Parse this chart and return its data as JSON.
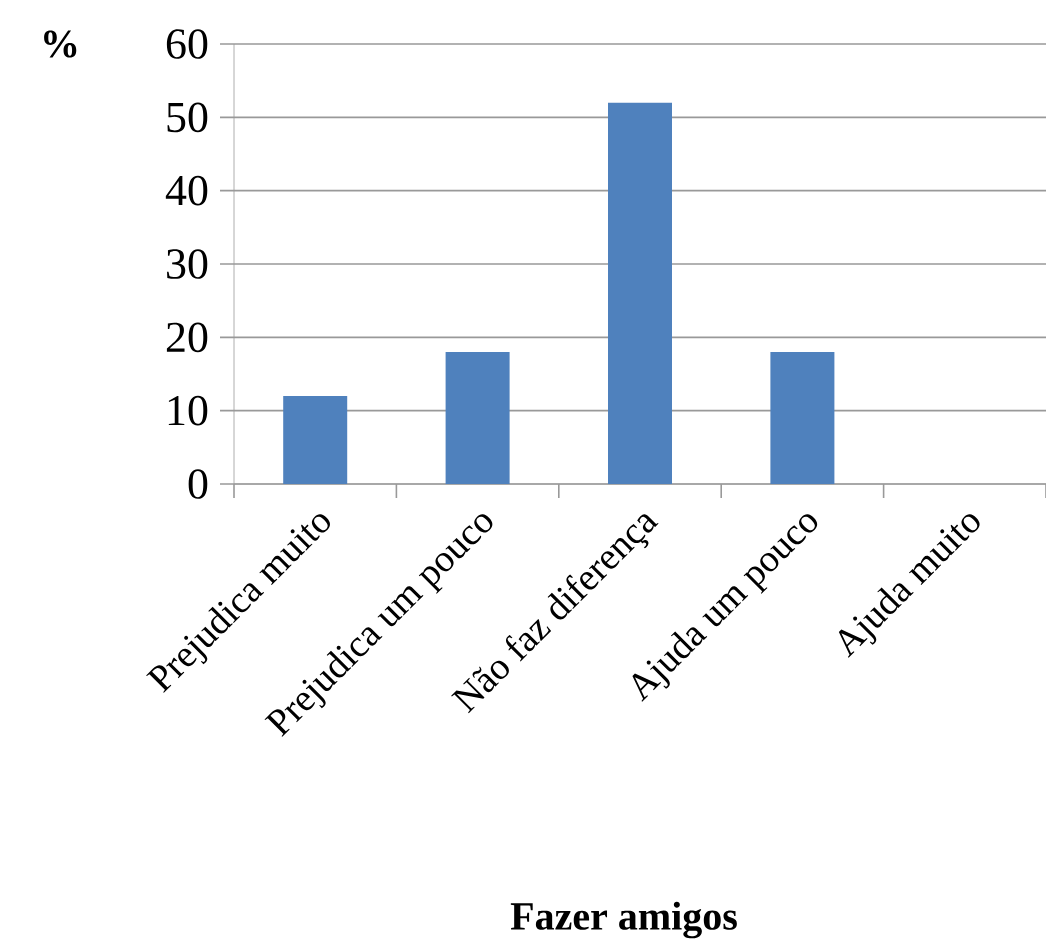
{
  "chart_data": {
    "type": "bar",
    "xlabel": "Fazer amigos",
    "ylabel": "%",
    "categories": [
      "Prejudica muito",
      "Prejudica um pouco",
      "Não faz diferença",
      "Ajuda um pouco",
      "Ajuda muito"
    ],
    "values": [
      12,
      18,
      52,
      18,
      0
    ],
    "color": "#4f81bd",
    "ylim": [
      0,
      60
    ],
    "yticks": [
      0,
      10,
      20,
      30,
      40,
      50,
      60
    ],
    "grid": "y"
  }
}
